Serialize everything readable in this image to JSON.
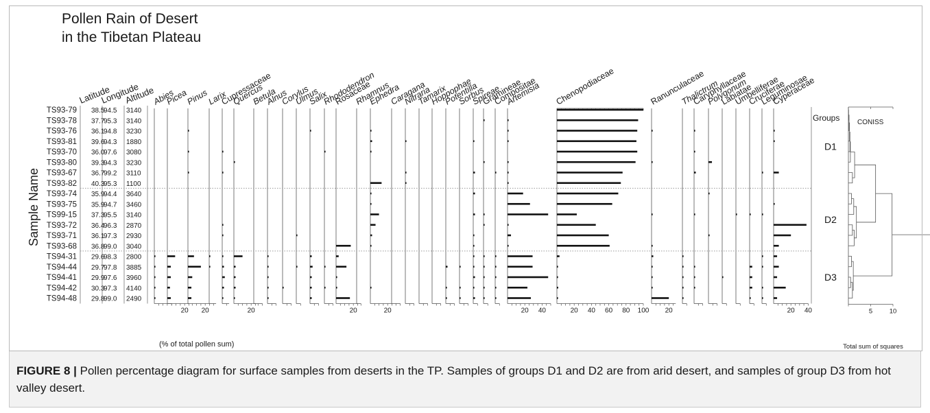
{
  "chart_data": {
    "type": "pollen_diagram",
    "title_line1": "Pollen Rain of Desert",
    "title_line2": "in the Tibetan Plateau",
    "ylabel": "Sample Name",
    "xlabel": "(% of total pollen sum)",
    "info_headers": [
      "Latitude",
      "Longitude",
      "Altitude"
    ],
    "samples": [
      {
        "name": "TS93-79",
        "lat": "38.5",
        "lon": "94.5",
        "alt": "3140"
      },
      {
        "name": "TS93-78",
        "lat": "37.7",
        "lon": "95.3",
        "alt": "3140"
      },
      {
        "name": "TS93-76",
        "lat": "36.1",
        "lon": "94.8",
        "alt": "3230"
      },
      {
        "name": "TS93-81",
        "lat": "39.6",
        "lon": "94.3",
        "alt": "1880"
      },
      {
        "name": "TS93-70",
        "lat": "36.0",
        "lon": "97.6",
        "alt": "3080"
      },
      {
        "name": "TS93-80",
        "lat": "39.3",
        "lon": "94.3",
        "alt": "3230"
      },
      {
        "name": "TS93-67",
        "lat": "36.7",
        "lon": "99.2",
        "alt": "3110"
      },
      {
        "name": "TS93-82",
        "lat": "40.3",
        "lon": "95.3",
        "alt": "1100"
      },
      {
        "name": "TS93-74",
        "lat": "35.9",
        "lon": "94.4",
        "alt": "3640"
      },
      {
        "name": "TS93-75",
        "lat": "35.9",
        "lon": "94.7",
        "alt": "3460"
      },
      {
        "name": "TS99-15",
        "lat": "37.3",
        "lon": "95.5",
        "alt": "3140"
      },
      {
        "name": "TS93-72",
        "lat": "36.4",
        "lon": "96.3",
        "alt": "2870"
      },
      {
        "name": "TS93-71",
        "lat": "36.1",
        "lon": "97.3",
        "alt": "2930"
      },
      {
        "name": "TS93-68",
        "lat": "36.8",
        "lon": "99.0",
        "alt": "3040"
      },
      {
        "name": "TS94-31",
        "lat": "29.6",
        "lon": "98.3",
        "alt": "2800"
      },
      {
        "name": "TS94-44",
        "lat": "29.7",
        "lon": "97.8",
        "alt": "3885"
      },
      {
        "name": "TS94-41",
        "lat": "29.9",
        "lon": "97.6",
        "alt": "3960"
      },
      {
        "name": "TS94-42",
        "lat": "30.3",
        "lon": "97.3",
        "alt": "4140"
      },
      {
        "name": "TS94-48",
        "lat": "29.8",
        "lon": "99.0",
        "alt": "2490"
      }
    ],
    "taxa": [
      {
        "name": "Abies",
        "italic": true,
        "max": 20,
        "ticks": []
      },
      {
        "name": "Picea",
        "italic": true,
        "max": 25,
        "ticks": [
          "20"
        ]
      },
      {
        "name": "Pinus",
        "italic": true,
        "max": 25,
        "ticks": [
          "20"
        ]
      },
      {
        "name": "Larix",
        "italic": true,
        "max": 8,
        "ticks": []
      },
      {
        "name": "Cupressaceae",
        "italic": false,
        "max": 8,
        "ticks": []
      },
      {
        "name": "Quercus",
        "italic": true,
        "max": 25,
        "ticks": [
          "20"
        ]
      },
      {
        "name": "Betula",
        "italic": true,
        "max": 10,
        "ticks": []
      },
      {
        "name": "Alnus",
        "italic": true,
        "max": 10,
        "ticks": []
      },
      {
        "name": "Corylus",
        "italic": true,
        "max": 10,
        "ticks": []
      },
      {
        "name": "Ulmus",
        "italic": true,
        "max": 5,
        "ticks": []
      },
      {
        "name": "Salix",
        "italic": true,
        "max": 10,
        "ticks": []
      },
      {
        "name": "Rhododendron",
        "italic": true,
        "max": 10,
        "ticks": []
      },
      {
        "name": "Rosaceae",
        "italic": false,
        "max": 25,
        "ticks": [
          "20"
        ]
      },
      {
        "name": "Rhamnus",
        "italic": true,
        "max": 5,
        "ticks": []
      },
      {
        "name": "Ephedra",
        "italic": true,
        "max": 25,
        "ticks": [
          "20"
        ]
      },
      {
        "name": "Caragana",
        "italic": true,
        "max": 10,
        "ticks": []
      },
      {
        "name": "Nitraria",
        "italic": true,
        "max": 10,
        "ticks": []
      },
      {
        "name": "Tamarix",
        "italic": true,
        "max": 10,
        "ticks": []
      },
      {
        "name": "Hoppophae",
        "italic": true,
        "max": 10,
        "ticks": []
      },
      {
        "name": "Potentilla",
        "italic": true,
        "max": 10,
        "ticks": []
      },
      {
        "name": "Sorbus",
        "italic": true,
        "max": 10,
        "ticks": []
      },
      {
        "name": "Spireae",
        "italic": true,
        "max": 5,
        "ticks": []
      },
      {
        "name": "Gramineae",
        "italic": false,
        "max": 5,
        "ticks": []
      },
      {
        "name": "Compositae",
        "italic": false,
        "max": 5,
        "ticks": []
      },
      {
        "name": "Artemisia",
        "italic": true,
        "max": 50,
        "ticks": [
          "20",
          "40"
        ]
      },
      {
        "name": "Chenopodiaceae",
        "italic": false,
        "max": 100,
        "ticks": [
          "20",
          "40",
          "60",
          "80",
          "100"
        ]
      },
      {
        "name": "Ranunculaceae",
        "italic": false,
        "max": 28,
        "ticks": [
          "20"
        ]
      },
      {
        "name": "Thalictrum",
        "italic": true,
        "max": 5,
        "ticks": []
      },
      {
        "name": "Caryphyllaceae",
        "italic": false,
        "max": 10,
        "ticks": []
      },
      {
        "name": "Polygonum",
        "italic": true,
        "max": 10,
        "ticks": []
      },
      {
        "name": "Labiatae",
        "italic": false,
        "max": 5,
        "ticks": []
      },
      {
        "name": "Umbelliferae",
        "italic": false,
        "max": 5,
        "ticks": []
      },
      {
        "name": "Cruciferae",
        "italic": false,
        "max": 5,
        "ticks": []
      },
      {
        "name": "Leguminosae",
        "italic": false,
        "max": 5,
        "ticks": []
      },
      {
        "name": "Cyperaceae",
        "italic": false,
        "max": 40,
        "ticks": [
          "20",
          "40"
        ]
      }
    ],
    "values": [
      [
        0,
        0,
        0,
        0,
        0,
        0,
        0,
        0,
        0,
        0,
        0,
        0,
        0,
        0,
        0,
        0,
        0,
        0,
        0,
        0,
        0,
        0,
        0,
        0,
        0,
        100,
        0,
        0,
        0,
        0,
        0,
        0,
        0,
        0,
        0
      ],
      [
        0,
        0,
        0,
        0,
        0,
        0,
        0,
        0,
        0,
        0,
        0,
        0,
        0,
        0,
        0,
        0,
        0,
        0,
        0,
        0,
        0,
        0,
        1,
        0,
        1,
        94,
        0,
        0,
        0,
        0,
        0,
        0,
        0,
        0,
        0
      ],
      [
        0,
        0,
        0.5,
        0,
        0,
        0,
        0,
        0,
        0,
        0,
        0.5,
        0,
        0,
        0,
        0.5,
        0,
        0,
        0,
        0,
        0,
        0,
        0,
        0,
        0,
        0.5,
        93,
        0.5,
        0,
        0.5,
        0,
        0,
        0,
        0,
        0,
        0.5
      ],
      [
        0,
        0,
        0,
        0,
        0,
        0,
        0,
        0,
        0,
        0,
        0,
        0,
        0,
        0,
        2,
        0,
        0.5,
        0,
        0,
        0,
        0,
        1,
        0,
        0,
        0.5,
        92,
        0,
        0,
        0,
        0,
        0,
        0,
        0,
        0,
        0.5
      ],
      [
        0,
        0,
        0.5,
        0,
        1,
        0,
        0,
        0,
        0,
        0,
        0,
        0.5,
        0,
        0,
        0.5,
        0,
        0,
        0,
        0,
        0,
        0,
        0,
        0,
        0,
        0,
        93,
        0,
        0,
        0.5,
        0,
        0,
        0,
        0,
        0,
        0
      ],
      [
        0,
        0,
        0,
        0,
        0,
        0.5,
        0,
        0,
        0,
        0,
        0,
        0,
        0,
        0,
        0,
        0,
        0,
        0,
        0,
        0,
        0,
        0,
        0.5,
        0,
        0.5,
        91,
        0.5,
        0,
        0,
        4,
        0,
        0,
        0,
        0,
        0
      ],
      [
        0,
        0,
        0.5,
        0,
        0.5,
        0,
        0,
        0,
        0,
        0,
        0,
        0,
        0,
        0,
        0,
        0,
        1,
        0,
        0,
        0,
        0,
        2,
        0,
        1,
        1,
        76,
        0,
        0,
        2,
        0,
        0,
        0,
        0,
        0.5,
        6
      ],
      [
        0,
        0,
        0,
        0,
        0,
        0,
        0,
        0,
        0,
        0,
        0,
        0,
        0,
        0,
        13,
        0,
        1,
        0,
        0,
        0,
        0,
        0,
        0,
        0,
        0.5,
        74,
        0,
        0,
        0,
        0,
        0,
        0,
        0,
        0,
        0
      ],
      [
        0,
        0,
        0,
        0,
        0,
        0,
        0,
        0,
        0,
        0,
        0,
        0,
        0,
        0,
        0.5,
        0,
        0,
        0,
        0,
        0,
        0,
        2,
        0,
        0,
        18,
        71,
        0,
        0,
        0,
        1,
        0,
        0,
        0,
        0,
        0
      ],
      [
        0,
        0,
        0,
        0,
        0,
        0,
        0,
        0,
        0,
        0,
        0,
        0,
        0,
        0,
        1,
        0,
        0,
        0,
        0,
        0,
        0,
        0,
        0,
        0,
        26,
        64,
        0,
        0,
        0,
        0,
        0,
        0,
        0,
        0,
        1
      ],
      [
        0,
        0,
        0,
        0,
        0,
        0,
        0,
        0,
        0,
        0,
        0,
        0,
        0,
        0,
        10,
        0,
        0,
        0,
        0,
        0,
        0,
        2,
        1,
        0,
        47,
        23,
        0.5,
        0,
        0.5,
        0,
        0,
        0.5,
        1,
        0.5,
        0
      ],
      [
        0,
        0,
        0,
        0,
        1,
        0,
        0,
        0,
        0,
        0,
        0,
        0,
        0,
        0,
        6,
        0,
        0,
        0,
        0,
        0,
        0,
        0,
        0.5,
        0,
        0.5,
        45,
        0,
        0,
        0,
        0,
        0,
        0,
        0,
        0,
        38
      ],
      [
        0,
        0,
        0,
        0,
        1,
        0,
        0,
        0,
        0,
        0.5,
        0,
        0,
        0,
        0,
        2,
        0,
        0,
        0,
        0,
        0,
        0,
        0.5,
        0,
        0,
        4,
        60,
        0,
        0,
        0,
        0.5,
        0,
        0,
        0,
        0,
        20
      ],
      [
        0,
        0,
        0,
        0,
        0,
        0,
        0,
        0,
        0,
        0,
        0,
        0,
        17,
        0,
        1,
        0,
        0,
        0,
        0,
        0,
        0,
        0.5,
        0,
        0,
        0.5,
        61,
        1,
        0,
        0,
        0,
        0,
        0,
        0,
        0,
        6
      ],
      [
        1,
        9,
        7,
        0.5,
        1,
        10,
        0,
        1,
        0,
        0,
        2,
        0,
        3,
        0,
        0,
        0,
        0,
        0,
        0,
        0,
        0,
        1,
        0.5,
        1,
        29,
        3,
        2,
        0.5,
        0,
        0,
        0,
        0,
        0,
        0.5,
        4
      ],
      [
        1,
        4,
        15,
        0.5,
        2,
        2,
        0,
        1,
        0,
        1,
        3,
        1,
        12,
        0,
        0,
        0,
        0,
        0,
        0,
        2,
        1,
        1,
        1,
        1,
        29,
        0.5,
        1,
        1,
        1,
        0,
        0,
        0,
        3,
        0.5,
        6
      ],
      [
        1,
        4,
        5,
        0,
        3,
        2,
        0,
        1,
        0,
        0,
        2,
        0,
        1,
        0,
        0,
        0,
        0,
        0,
        0,
        0,
        0,
        2,
        0.5,
        1,
        47,
        0.5,
        1,
        0.5,
        0.5,
        0,
        0.5,
        0,
        3,
        0,
        4
      ],
      [
        1,
        3,
        4,
        0,
        2,
        2,
        0,
        1,
        1,
        0,
        2,
        0.5,
        1,
        0,
        0.5,
        0,
        0,
        0,
        0,
        0.5,
        0.5,
        1,
        0.5,
        1,
        23,
        1.5,
        1,
        1,
        0.5,
        0,
        0,
        0,
        3,
        0.5,
        14
      ],
      [
        1,
        4,
        4,
        0,
        1,
        1,
        0,
        1,
        0,
        0,
        2,
        0,
        16,
        0,
        0,
        0,
        0,
        0,
        0,
        0.5,
        0.5,
        2,
        1,
        1,
        27,
        0.5,
        20,
        0.5,
        0,
        0,
        0,
        0,
        1,
        0.5,
        4
      ]
    ],
    "groups": [
      {
        "name": "D1",
        "rows": [
          0,
          7
        ]
      },
      {
        "name": "D2",
        "rows": [
          8,
          13
        ]
      },
      {
        "name": "D3",
        "rows": [
          14,
          18
        ]
      }
    ],
    "groups_label": "Groups",
    "coniss_label": "CONISS",
    "coniss_ticks": [
      "5",
      "10"
    ],
    "coniss_xlabel": "Total sum of squares",
    "coniss_xlim": [
      0,
      10
    ],
    "coniss_merges": [
      {
        "a": 0,
        "b": 1,
        "h": 0.05
      },
      {
        "a": "n0",
        "b": 2,
        "h": 0.15
      },
      {
        "a": "n1",
        "b": 3,
        "h": 0.25
      },
      {
        "a": "n2",
        "b": 4,
        "h": 0.35
      },
      {
        "a": "n3",
        "b": 5,
        "h": 0.45
      },
      {
        "a": 6,
        "b": 7,
        "h": 0.9
      },
      {
        "a": "n4",
        "b": "n5",
        "h": 1.4
      },
      {
        "a": 8,
        "b": 9,
        "h": 0.7
      },
      {
        "a": "n7",
        "b": 10,
        "h": 1.2
      },
      {
        "a": 11,
        "b": 12,
        "h": 0.9
      },
      {
        "a": "n9",
        "b": 13,
        "h": 1.3
      },
      {
        "a": "n8",
        "b": "n10",
        "h": 1.8
      },
      {
        "a": "n6",
        "b": "n11",
        "h": 6.1
      },
      {
        "a": 14,
        "b": 15,
        "h": 0.7
      },
      {
        "a": 16,
        "b": 17,
        "h": 0.5
      },
      {
        "a": "n14",
        "b": 18,
        "h": 0.9
      },
      {
        "a": "n13",
        "b": "n15",
        "h": 1.1
      },
      {
        "a": "n12",
        "b": "n16",
        "h": 9.8
      }
    ]
  },
  "caption": {
    "label": "FIGURE 8 |",
    "text": " Pollen percentage diagram for surface samples from deserts in the TP. Samples of groups D1 and D2 are from arid desert, and samples of group D3 from hot valley desert."
  }
}
